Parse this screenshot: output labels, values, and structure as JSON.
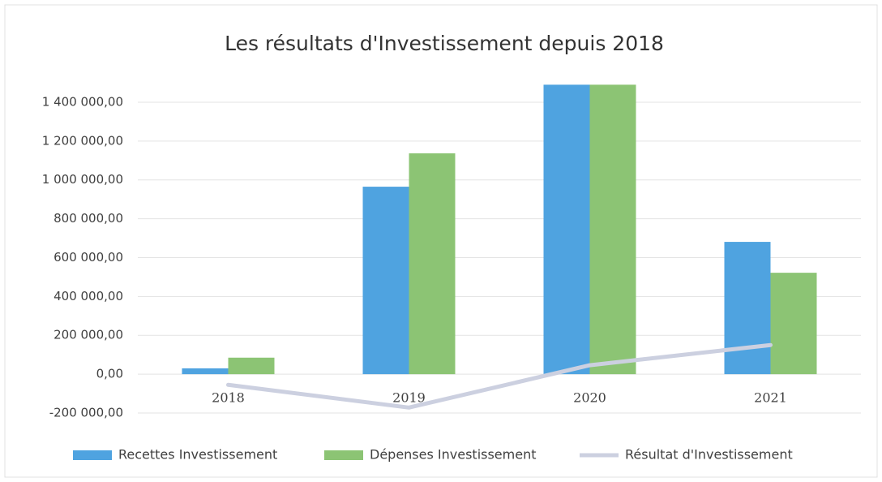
{
  "chart_data": {
    "type": "bar",
    "title": "Les résultats d'Investissement depuis 2018",
    "categories": [
      "2018",
      "2019",
      "2020",
      "2021"
    ],
    "series": [
      {
        "name": "Recettes Investissement",
        "color": "#4fa3e0",
        "values": [
          30000,
          965000,
          1490000,
          681000
        ]
      },
      {
        "name": "Dépenses Investissement",
        "color": "#8cc474",
        "values": [
          85000,
          1137000,
          1490000,
          522000
        ]
      },
      {
        "name": "Résultat d'Investissement",
        "color": "#ccd0e0",
        "type": "line",
        "values": [
          -55000,
          -172000,
          46000,
          150000
        ]
      }
    ],
    "ylim": [
      -200000,
      1500000
    ],
    "yticks": [
      {
        "value": -200000,
        "label": "-200 000,00"
      },
      {
        "value": 0,
        "label": "0,00"
      },
      {
        "value": 200000,
        "label": "200 000,00"
      },
      {
        "value": 400000,
        "label": "400 000,00"
      },
      {
        "value": 600000,
        "label": "600 000,00"
      },
      {
        "value": 800000,
        "label": "800 000,00"
      },
      {
        "value": 1000000,
        "label": "1 000 000,00"
      },
      {
        "value": 1200000,
        "label": "1 200 000,00"
      },
      {
        "value": 1400000,
        "label": "1 400 000,00"
      }
    ],
    "grid": true,
    "legend": "bottom"
  }
}
